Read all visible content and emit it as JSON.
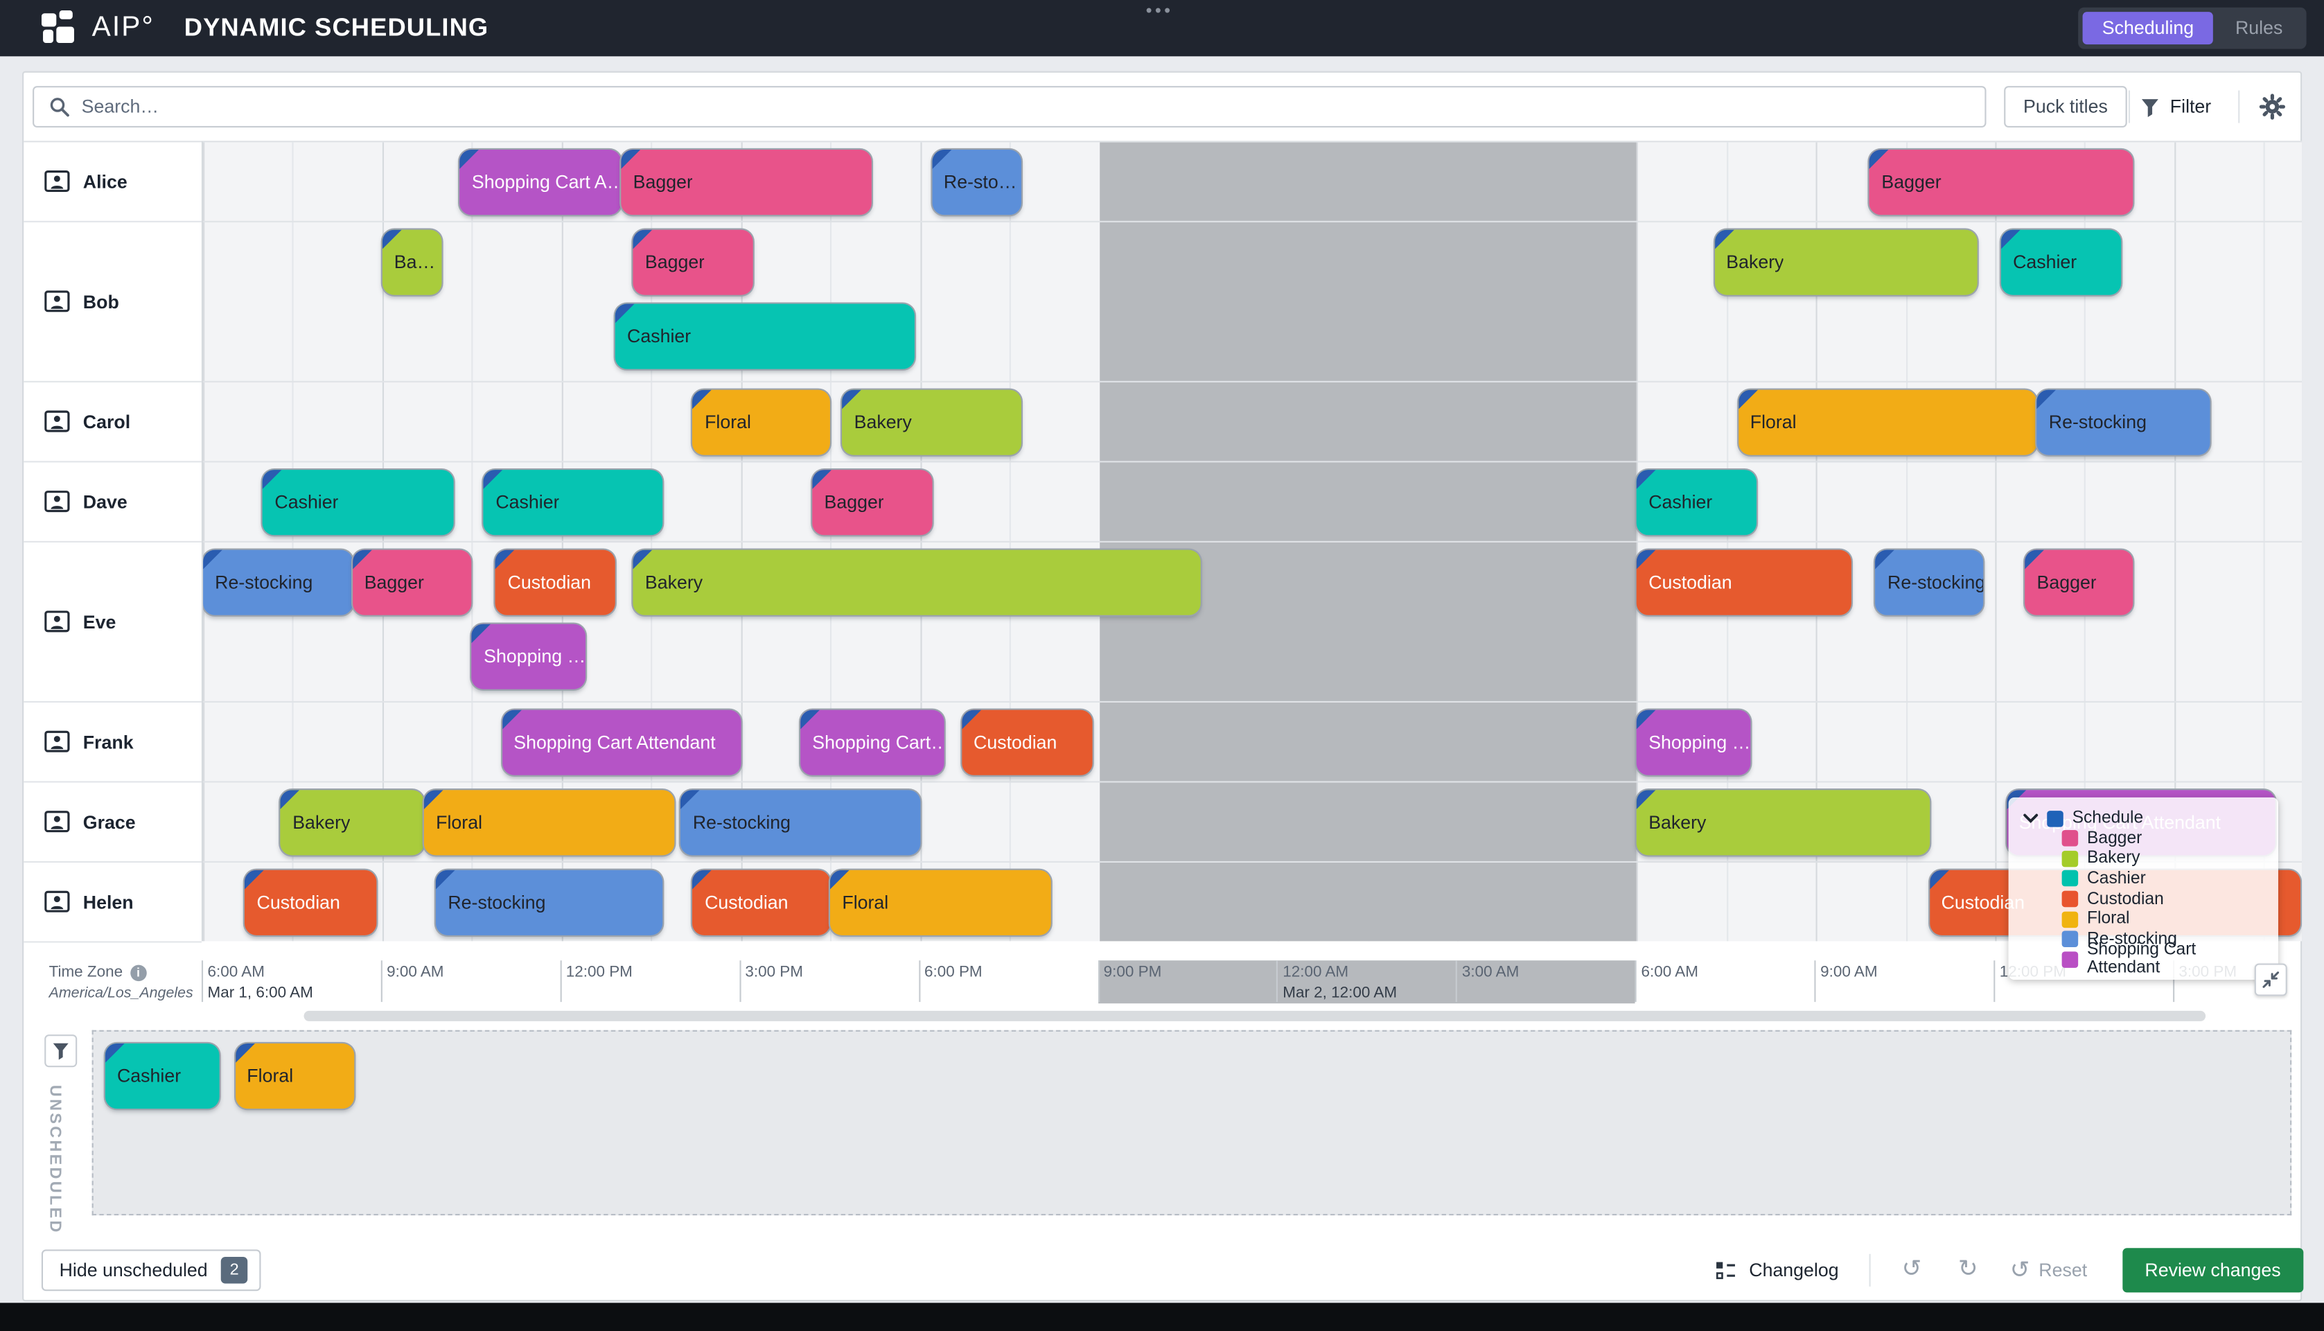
{
  "topbar": {
    "logo_text": "AIP°",
    "title": "DYNAMIC SCHEDULING",
    "menu_dots": "•••",
    "nav": [
      {
        "label": "Scheduling",
        "active": true
      },
      {
        "label": "Rules",
        "active": false
      }
    ]
  },
  "toolbar": {
    "search_placeholder": "Search…",
    "puck_titles_label": "Puck titles",
    "filter_label": "Filter"
  },
  "colors": {
    "nav_active": "#7A69E3",
    "review_green": "#1E8A4C",
    "closed_band": "#B6B9BD",
    "fold": "#2A5CB0"
  },
  "roles": {
    "Bagger": {
      "bg": "#E8538A",
      "fg": "#20242C"
    },
    "Bakery": {
      "bg": "#A9CC3C",
      "fg": "#20242C"
    },
    "Cashier": {
      "bg": "#06C4B2",
      "fg": "#20242C"
    },
    "Custodian": {
      "bg": "#E65A2E",
      "fg": "#FFFFFF"
    },
    "Floral": {
      "bg": "#F2AC16",
      "fg": "#20242C"
    },
    "Re-stocking": {
      "bg": "#5C8FD9",
      "fg": "#20242C"
    },
    "Shopping Cart Attendant": {
      "bg": "#B554C6",
      "fg": "#FFFFFF"
    }
  },
  "schedule": {
    "rows": [
      {
        "name": "Alice",
        "lanes": [
          [
            {
              "label": "Shopping Cart A…",
              "role": "Shopping Cart Attendant",
              "start": 4.3,
              "dur": 2.7
            },
            {
              "label": "Bagger",
              "role": "Bagger",
              "start": 7,
              "dur": 4.2
            },
            {
              "label": "Re-sto…",
              "role": "Re-stocking",
              "start": 12.2,
              "dur": 1.5
            },
            {
              "label": "Bagger",
              "role": "Bagger",
              "start": 27.9,
              "dur": 4.4
            }
          ]
        ]
      },
      {
        "name": "Bob",
        "lanes": [
          [
            {
              "label": "Ba…",
              "role": "Bakery",
              "start": 3,
              "dur": 1
            },
            {
              "label": "Bagger",
              "role": "Bagger",
              "start": 7.2,
              "dur": 2
            },
            {
              "label": "Bakery",
              "role": "Bakery",
              "start": 25.3,
              "dur": 4.4
            },
            {
              "label": "Cashier",
              "role": "Cashier",
              "start": 30.1,
              "dur": 2
            }
          ],
          [
            {
              "label": "Cashier",
              "role": "Cashier",
              "start": 6.9,
              "dur": 5
            }
          ]
        ]
      },
      {
        "name": "Carol",
        "lanes": [
          [
            {
              "label": "Floral",
              "role": "Floral",
              "start": 8.2,
              "dur": 2.3
            },
            {
              "label": "Bakery",
              "role": "Bakery",
              "start": 10.7,
              "dur": 3
            },
            {
              "label": "Floral",
              "role": "Floral",
              "start": 25.7,
              "dur": 5
            },
            {
              "label": "Re-stocking",
              "role": "Re-stocking",
              "start": 30.7,
              "dur": 2.9
            }
          ]
        ]
      },
      {
        "name": "Dave",
        "lanes": [
          [
            {
              "label": "Cashier",
              "role": "Cashier",
              "start": 1,
              "dur": 3.2
            },
            {
              "label": "Cashier",
              "role": "Cashier",
              "start": 4.7,
              "dur": 3
            },
            {
              "label": "Bagger",
              "role": "Bagger",
              "start": 10.2,
              "dur": 2
            },
            {
              "label": "Cashier",
              "role": "Cashier",
              "start": 24,
              "dur": 2
            }
          ]
        ]
      },
      {
        "name": "Eve",
        "lanes": [
          [
            {
              "label": "Re-stocking",
              "role": "Re-stocking",
              "start": 0,
              "dur": 2.5
            },
            {
              "label": "Bagger",
              "role": "Bagger",
              "start": 2.5,
              "dur": 2
            },
            {
              "label": "Custodian",
              "role": "Custodian",
              "start": 4.9,
              "dur": 2
            },
            {
              "label": "Bakery",
              "role": "Bakery",
              "start": 7.2,
              "dur": 9.5
            },
            {
              "label": "Custodian",
              "role": "Custodian",
              "start": 24,
              "dur": 3.6
            },
            {
              "label": "Re-stocking",
              "role": "Re-stocking",
              "start": 28,
              "dur": 1.8
            },
            {
              "label": "Bagger",
              "role": "Bagger",
              "start": 30.5,
              "dur": 1.8
            }
          ],
          [
            {
              "label": "Shopping …",
              "role": "Shopping Cart Attendant",
              "start": 4.5,
              "dur": 1.9
            }
          ]
        ]
      },
      {
        "name": "Frank",
        "lanes": [
          [
            {
              "label": "Shopping Cart Attendant",
              "role": "Shopping Cart Attendant",
              "start": 5,
              "dur": 4
            },
            {
              "label": "Shopping Cart…",
              "role": "Shopping Cart Attendant",
              "start": 10,
              "dur": 2.4
            },
            {
              "label": "Custodian",
              "role": "Custodian",
              "start": 12.7,
              "dur": 2.2
            },
            {
              "label": "Shopping …",
              "role": "Shopping Cart Attendant",
              "start": 24,
              "dur": 1.9
            }
          ]
        ]
      },
      {
        "name": "Grace",
        "lanes": [
          [
            {
              "label": "Bakery",
              "role": "Bakery",
              "start": 1.3,
              "dur": 2.4
            },
            {
              "label": "Floral",
              "role": "Floral",
              "start": 3.7,
              "dur": 4.2
            },
            {
              "label": "Re-stocking",
              "role": "Re-stocking",
              "start": 8,
              "dur": 4
            },
            {
              "label": "Bakery",
              "role": "Bakery",
              "start": 24,
              "dur": 4.9
            },
            {
              "label": "Shopping Cart Attendant",
              "role": "Shopping Cart Attendant",
              "start": 30.2,
              "dur": 4.5
            }
          ]
        ]
      },
      {
        "name": "Helen",
        "lanes": [
          [
            {
              "label": "Custodian",
              "role": "Custodian",
              "start": 0.7,
              "dur": 2.2
            },
            {
              "label": "Re-stocking",
              "role": "Re-stocking",
              "start": 3.9,
              "dur": 3.8
            },
            {
              "label": "Custodian",
              "role": "Custodian",
              "start": 8.2,
              "dur": 2.3
            },
            {
              "label": "Floral",
              "role": "Floral",
              "start": 10.5,
              "dur": 3.7
            },
            {
              "label": "Custodian",
              "role": "Custodian",
              "start": 28.9,
              "dur": 6.2
            }
          ]
        ]
      }
    ],
    "axis": {
      "ticks": [
        "6:00 AM",
        "9:00 AM",
        "12:00 PM",
        "3:00 PM",
        "6:00 PM",
        "9:00 PM",
        "12:00 AM",
        "3:00 AM",
        "6:00 AM",
        "9:00 AM",
        "12:00 PM",
        "3:00 PM"
      ],
      "day_markers": [
        {
          "label": "Mar 1, 6:00 AM",
          "tick": 0
        },
        {
          "label": "Mar 2, 12:00 AM",
          "tick": 6
        }
      ],
      "closed": {
        "start_tick": 5,
        "end_tick": 8
      }
    },
    "timezone": {
      "label": "Time Zone",
      "value": "America/Los_Angeles"
    }
  },
  "legend": {
    "title": "Schedule",
    "title_swatch": "#1F62B8",
    "items": [
      {
        "label": "Bagger",
        "color": "#E0508C"
      },
      {
        "label": "Bakery",
        "color": "#A4CC29"
      },
      {
        "label": "Cashier",
        "color": "#00C2AD"
      },
      {
        "label": "Custodian",
        "color": "#E8542E"
      },
      {
        "label": "Floral",
        "color": "#F0B310"
      },
      {
        "label": "Re-stocking",
        "color": "#5C8FD9"
      },
      {
        "label": "Shopping Cart Attendant",
        "color": "#B94FC4"
      }
    ]
  },
  "unscheduled": {
    "side_label": "UNSCHEDULED",
    "items": [
      {
        "label": "Cashier",
        "role": "Cashier",
        "dur": 1.9
      },
      {
        "label": "Floral",
        "role": "Floral",
        "dur": 2.0
      }
    ]
  },
  "bottombar": {
    "hide_button": "Hide unscheduled",
    "badge": "2",
    "changelog": "Changelog",
    "undo_icon": "↺",
    "redo_icon": "↻",
    "reset_icon": "↺",
    "reset": "Reset",
    "review": "Review changes"
  }
}
